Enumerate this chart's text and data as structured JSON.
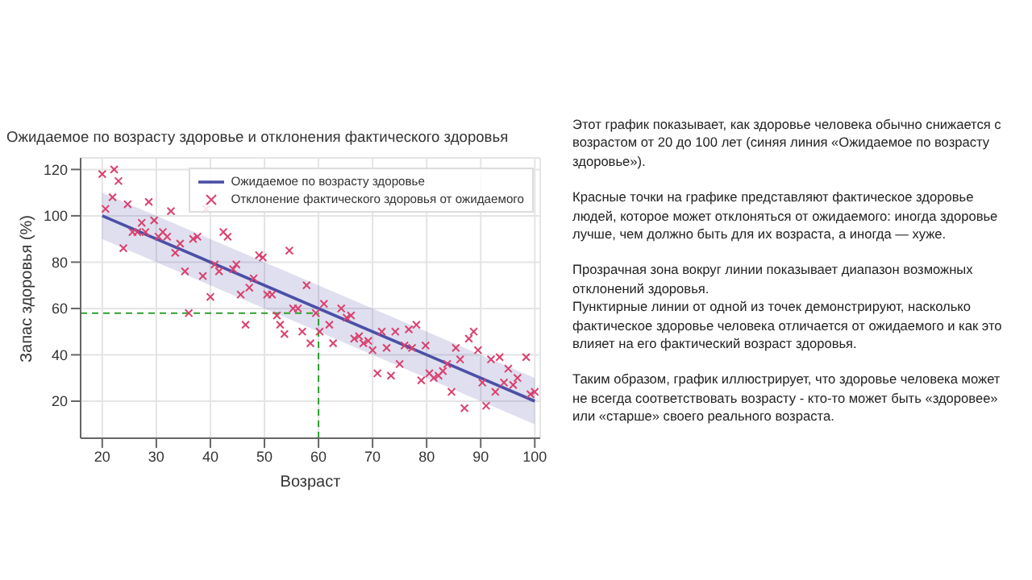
{
  "chart_data": {
    "type": "scatter",
    "title": "Ожидаемое по возрасту здоровье и отклонения фактического здоровья",
    "xlabel": "Возраст",
    "ylabel": "Запас здоровья (%)",
    "xlim": [
      16,
      101
    ],
    "xticks": [
      20,
      30,
      40,
      50,
      60,
      70,
      80,
      90,
      100
    ],
    "ylim": [
      4,
      125
    ],
    "yticks": [
      20,
      40,
      60,
      80,
      100,
      120
    ],
    "grid": true,
    "legend": "top right",
    "series": [
      {
        "type": "line",
        "name": "Ожидаемое по возрасту здоровье",
        "color": "#4b4fa6",
        "x": [
          20,
          100
        ],
        "values": [
          100,
          20
        ],
        "lower": [
          90,
          10
        ],
        "upper": [
          110,
          30
        ],
        "marker": "none",
        "line_style": "solid"
      },
      {
        "name": "Отклонение фактического здоровья от ожидаемого",
        "color": "#d9416e",
        "marker": "cross",
        "x": [
          20,
          20.6,
          21.9,
          22.2,
          23,
          23.9,
          24.7,
          25.6,
          26.5,
          27.3,
          28,
          28.6,
          29.6,
          30.4,
          31.2,
          32,
          32.7,
          33.5,
          34.4,
          35.3,
          36,
          36.8,
          37.6,
          38.6,
          39.2,
          40,
          40.8,
          41.6,
          42.4,
          43.2,
          44.2,
          44.8,
          45.6,
          46.5,
          47.2,
          48,
          49,
          49.7,
          50.5,
          51.4,
          52.3,
          52.9,
          53.7,
          54.6,
          55.3,
          56.2,
          57,
          57.8,
          58.5,
          59.5,
          60.2,
          61,
          62,
          62.7,
          64.2,
          65.2,
          66,
          66.6,
          67.5,
          68.3,
          69.2,
          70,
          70.9,
          71.7,
          72.6,
          73.4,
          74.2,
          75,
          75.9,
          76.7,
          77.3,
          78.1,
          79,
          79.8,
          80.5,
          81.3,
          82.2,
          83,
          83.8,
          84.6,
          85.4,
          86.2,
          87,
          87.8,
          88.7,
          89.5,
          90.3,
          91,
          91.9,
          92.7,
          93.5,
          94.3,
          95.1,
          96,
          96.8,
          98.4,
          99.2,
          100
        ],
        "values": [
          118,
          103,
          108,
          120,
          115,
          86,
          105,
          93,
          93,
          97,
          93,
          106,
          98,
          91,
          93,
          91,
          102,
          84,
          88,
          76,
          58,
          90,
          91,
          74,
          103,
          65,
          79,
          76,
          93,
          91,
          77,
          79,
          66,
          53,
          69,
          73,
          83,
          82,
          66,
          66,
          57,
          53,
          49,
          85,
          60,
          60,
          50,
          70,
          45,
          58,
          50,
          62,
          53,
          45,
          60,
          56,
          57,
          47,
          48,
          45,
          46,
          42,
          32,
          50,
          43,
          31,
          50,
          36,
          44,
          51,
          43,
          53,
          29,
          44,
          32,
          30,
          31,
          33,
          36,
          24,
          43,
          38,
          17,
          47,
          50,
          42,
          28,
          18,
          38,
          24,
          39,
          28,
          34,
          27,
          30,
          39,
          23,
          24
        ]
      }
    ],
    "ref_lines": [
      {
        "axis": "y",
        "value": 58,
        "color": "#2ca02c",
        "line_style": "dashed"
      },
      {
        "axis": "x",
        "value": 60,
        "color": "#2ca02c",
        "line_style": "dashed"
      }
    ],
    "annotations": [
      "Этот график показывает, как здоровье человека обычно снижается с возрастом от 20 до 100 лет (синяя линия «Ожидаемое по возрасту здоровье»).",
      "Красные точки на графике представляют фактическое здоровье людей, которое может отклоняться от ожидаемого: иногда здоровье лучше, чем должно быть для их возраста, а иногда — хуже.",
      "Прозрачная зона вокруг линии показывает диапазон возможных отклонений здоровья.",
      "Пунктирные линии от одной из точек демонстрируют, насколько фактическое здоровье человека отличается от ожидаемого и как это влияет на его фактический возраст здоровья.",
      "Таким образом, график иллюстрирует, что здоровье человека может не всегда соответствовать возрасту - кто-то может быть «здоровее» или «старше» своего реального возраста."
    ]
  }
}
